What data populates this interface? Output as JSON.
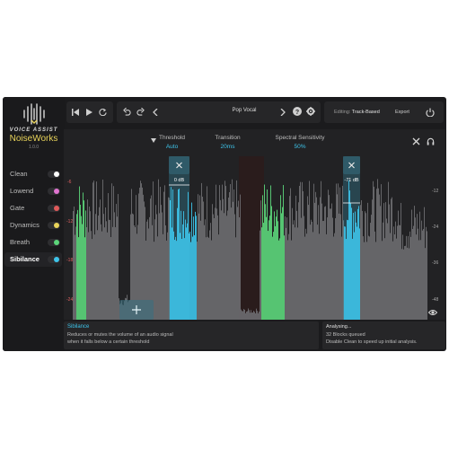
{
  "brand": {
    "subtitle": "VOICE ASSIST",
    "name": "NoiseWorks",
    "version": "1.0.0"
  },
  "sidebar": {
    "modules": [
      {
        "label": "Clean",
        "dot": "#ffffff",
        "active": false
      },
      {
        "label": "Lowend",
        "dot": "#e074d0",
        "active": false
      },
      {
        "label": "Gate",
        "dot": "#e05a5a",
        "active": false
      },
      {
        "label": "Dynamics",
        "dot": "#e8d35a",
        "active": false
      },
      {
        "label": "Breath",
        "dot": "#5cd67a",
        "active": false
      },
      {
        "label": "Sibilance",
        "dot": "#3ec4ea",
        "active": true
      }
    ]
  },
  "header": {
    "preset": "Pop Vocal",
    "editing_label": "Editing:",
    "editing_value": "Track-Based",
    "export_label": "Export"
  },
  "params": {
    "threshold_label": "Threshold",
    "threshold_value": "Auto",
    "transition_label": "Transition",
    "transition_value": "20ms",
    "sensitivity_label": "Spectral Sensitivity",
    "sensitivity_value": "50%"
  },
  "waveform": {
    "markers": [
      {
        "label": "0 dB"
      },
      {
        "label": "-71 dB"
      }
    ],
    "y_labels_left": [
      "-6",
      "-12",
      "-18",
      "-24"
    ],
    "y_labels_right": [
      "-12",
      "-24",
      "-36",
      "-48"
    ]
  },
  "footer": {
    "info_title": "Sibilance",
    "info_line1": "Reduces or mutes the volume of an audio signal",
    "info_line2": "when it falls below a certain threshold",
    "status_title": "Analysing...",
    "status_line1": "32 Blocks queued",
    "status_line2": "Disable Clean to speed up initial analysis."
  },
  "colors": {
    "accent": "#3ec4ea",
    "brand": "#e8d35a",
    "green_band": "#5cd67a",
    "red_band": "#e05a5a"
  }
}
